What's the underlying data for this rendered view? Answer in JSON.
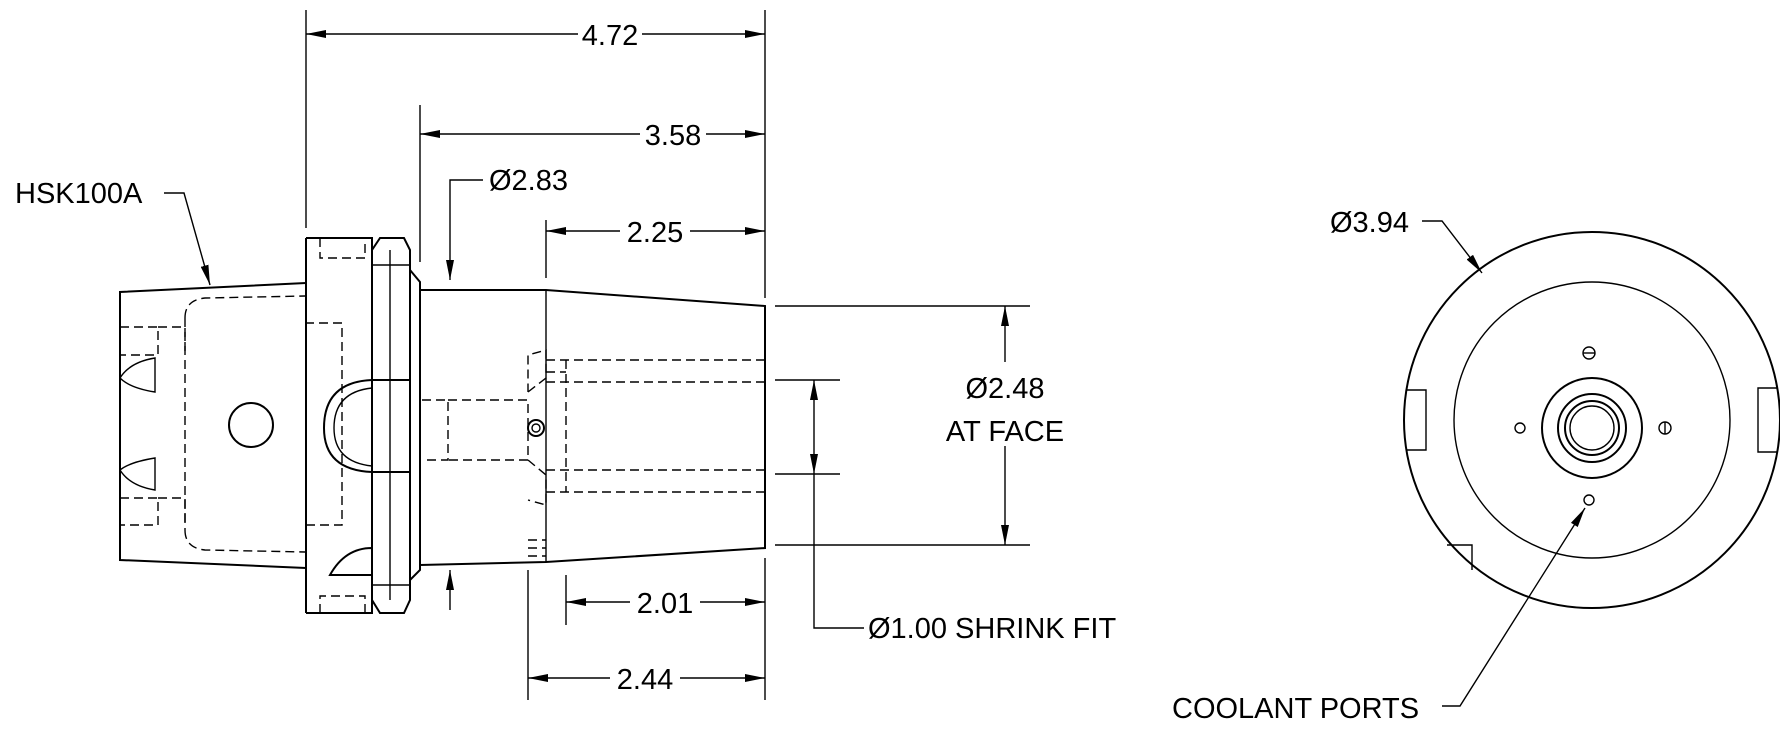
{
  "dimensions": {
    "overall_length": "4.72",
    "gauge_to_face": "3.58",
    "neck_diameter": "Ø2.83",
    "taper_length": "2.25",
    "face_diameter": "Ø2.48",
    "face_diameter_note": "AT FACE",
    "bore_depth": "2.01",
    "shrink_length": "2.44",
    "shrink_fit": "Ø1.00 SHRINK FIT",
    "flange_diameter": "Ø3.94"
  },
  "callouts": {
    "taper_spec": "HSK100A",
    "coolant": "COOLANT PORTS"
  }
}
